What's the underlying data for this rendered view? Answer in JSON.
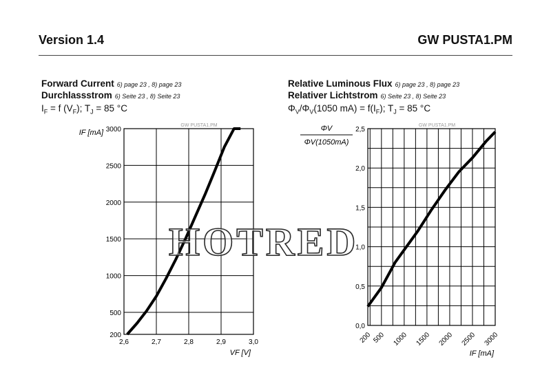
{
  "header": {
    "version": "Version 1.4",
    "product": "GW PUSTA1.PM"
  },
  "charts_meta": [
    {
      "title_en": "Forward Current",
      "title_en_refs": "6) page 23 , 8) page 23",
      "title_de": "Durchlassstrom",
      "title_de_refs": "6) Seite 23 , 8) Seite 23",
      "equation_parts": [
        "I",
        "F",
        " = f (V",
        "F",
        "); T",
        "J",
        " = 85 °C"
      ]
    },
    {
      "title_en": "Relative Luminous Flux",
      "title_en_refs": "6) page 23 , 8) page 23",
      "title_de": "Relativer Lichtstrom",
      "title_de_refs": "6) Seite 23 , 8) Seite 23",
      "equation_parts": [
        "Φ",
        "V",
        "/Φ",
        "V",
        "(1050 mA) = f(I",
        "F",
        "); T",
        "J",
        " = 85 °C"
      ]
    }
  ],
  "watermark": "HOTRED",
  "chart_data": [
    {
      "type": "line",
      "title": "Forward Current",
      "source_label": "GW PUSTA1.PM",
      "xlabel": "VF [V]",
      "ylabel": "IF [mA]",
      "xlim": [
        2.6,
        3.0
      ],
      "ylim": [
        200,
        3000
      ],
      "x_ticks": [
        "2,6",
        "2,7",
        "2,8",
        "2,9",
        "3,0"
      ],
      "y_ticks": [
        "200",
        "500",
        "1000",
        "1500",
        "2000",
        "2500",
        "3000"
      ],
      "y_tick_values": [
        200,
        500,
        1000,
        1500,
        2000,
        2500,
        3000
      ],
      "grid": true,
      "series": [
        {
          "x": [
            2.61,
            2.64,
            2.67,
            2.7,
            2.73,
            2.76,
            2.79,
            2.82,
            2.85,
            2.88,
            2.91,
            2.94,
            2.96
          ],
          "y": [
            200,
            350,
            520,
            720,
            960,
            1220,
            1500,
            1800,
            2100,
            2420,
            2750,
            3000,
            3000
          ]
        }
      ]
    },
    {
      "type": "line",
      "title": "Relative Luminous Flux",
      "source_label": "GW PUSTA1.PM",
      "xlabel": "IF [mA]",
      "ylabel_num": "ΦV",
      "ylabel_den": "ΦV(1050mA)",
      "xlim": [
        200,
        3000
      ],
      "ylim": [
        0.0,
        2.5
      ],
      "x_ticks": [
        "200",
        "500",
        "1000",
        "1500",
        "2000",
        "2500",
        "3000"
      ],
      "x_tick_values": [
        200,
        500,
        1000,
        1500,
        2000,
        2500,
        3000
      ],
      "y_ticks": [
        "0,0",
        "0,5",
        "1,0",
        "1,5",
        "2,0",
        "2,5"
      ],
      "y_tick_values": [
        0.0,
        0.5,
        1.0,
        1.5,
        2.0,
        2.5
      ],
      "grid": true,
      "series": [
        {
          "x": [
            200,
            500,
            800,
            1050,
            1300,
            1600,
            1900,
            2200,
            2500,
            2800,
            3000
          ],
          "y": [
            0.24,
            0.48,
            0.8,
            1.0,
            1.2,
            1.47,
            1.72,
            1.95,
            2.13,
            2.34,
            2.46
          ]
        }
      ]
    }
  ]
}
